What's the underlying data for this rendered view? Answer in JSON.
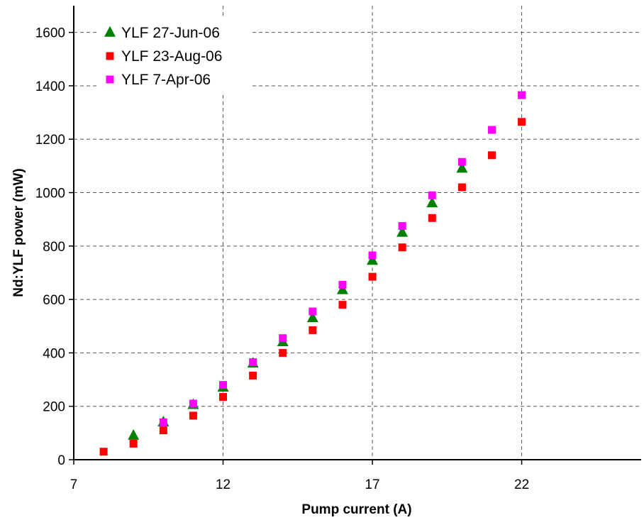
{
  "chart_data": {
    "type": "scatter",
    "title": "",
    "xlabel": "Pump current (A)",
    "ylabel": "Nd:YLF power (mW)",
    "xlim": [
      7,
      26
    ],
    "ylim": [
      0,
      1700
    ],
    "xticks": [
      7,
      12,
      17,
      22
    ],
    "yticks": [
      0,
      200,
      400,
      600,
      800,
      1000,
      1200,
      1400,
      1600
    ],
    "grid": true,
    "legend_position": "top-left",
    "series": [
      {
        "name": "YLF 27-Jun-06",
        "marker": "triangle",
        "color": "#008000",
        "x": [
          9,
          10,
          11,
          12,
          13,
          14,
          15,
          16,
          17,
          18,
          19,
          20
        ],
        "y": [
          90,
          140,
          205,
          270,
          360,
          440,
          530,
          635,
          745,
          850,
          960,
          1090
        ]
      },
      {
        "name": "YLF 23-Aug-06",
        "marker": "square",
        "color": "#ff0000",
        "x": [
          8,
          9,
          10,
          11,
          12,
          13,
          14,
          15,
          16,
          17,
          18,
          19,
          20,
          21,
          22
        ],
        "y": [
          30,
          60,
          110,
          165,
          235,
          315,
          400,
          485,
          580,
          685,
          795,
          905,
          1020,
          1140,
          1265
        ]
      },
      {
        "name": "YLF 7-Apr-06",
        "marker": "square",
        "color": "#ff00ff",
        "x": [
          10,
          11,
          12,
          13,
          14,
          15,
          16,
          17,
          18,
          19,
          20,
          21,
          22
        ],
        "y": [
          140,
          210,
          280,
          365,
          455,
          555,
          655,
          765,
          875,
          990,
          1115,
          1235,
          1365
        ]
      }
    ]
  }
}
